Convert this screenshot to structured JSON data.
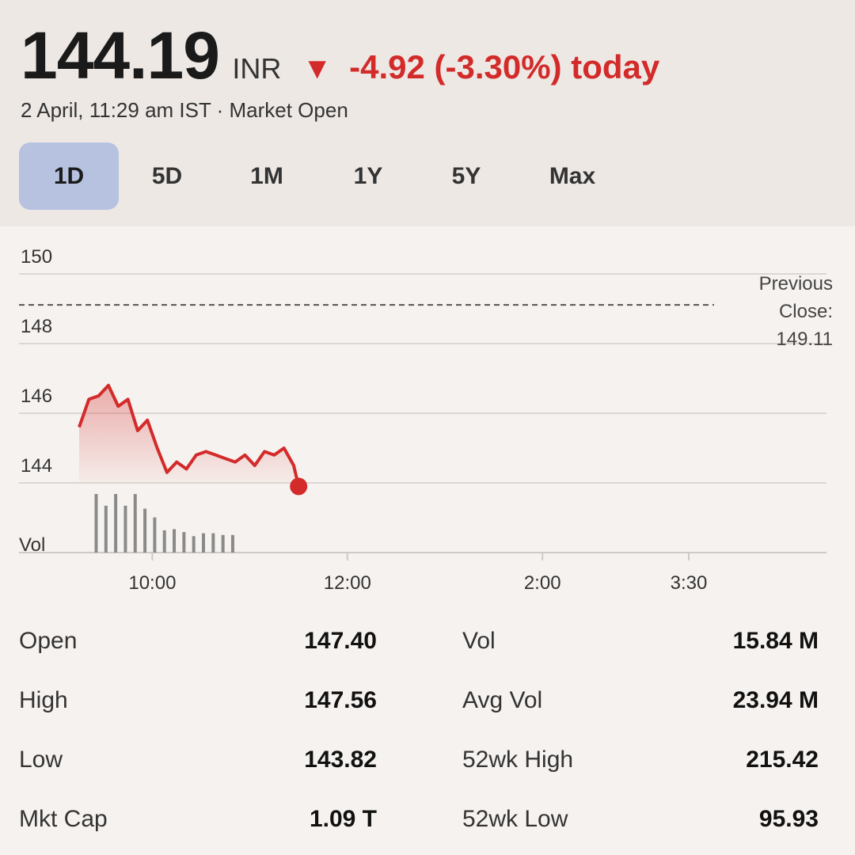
{
  "quote": {
    "price": "144.19",
    "currency": "INR",
    "change_icon": "down-triangle-icon",
    "change_arrow": "▼",
    "change_text": "-4.92 (-3.30%) today",
    "change_color": "#d32a2a",
    "timestamp": "2 April, 11:29 am IST · Market Open"
  },
  "tabs": [
    {
      "label": "1D",
      "active": true
    },
    {
      "label": "5D",
      "active": false
    },
    {
      "label": "1M",
      "active": false
    },
    {
      "label": "1Y",
      "active": false
    },
    {
      "label": "5Y",
      "active": false
    },
    {
      "label": "Max",
      "active": false
    }
  ],
  "chart_data": {
    "type": "line",
    "y_ticks": [
      "150",
      "148",
      "146",
      "144"
    ],
    "ylim": [
      142,
      150
    ],
    "x_ticks": [
      "10:00",
      "12:00",
      "2:00",
      "3:30"
    ],
    "x_tick_times": [
      10.0,
      12.0,
      14.0,
      15.5
    ],
    "x_range": [
      9.25,
      15.5
    ],
    "previous_close": {
      "label_lines": [
        "Previous",
        "Close:",
        "149.11"
      ],
      "value": 149.11
    },
    "volume_label": "Vol",
    "line_color": "#d32a2a",
    "series": [
      {
        "x": [
          9.25,
          9.35,
          9.45,
          9.55,
          9.65,
          9.75,
          9.85,
          9.95,
          10.05,
          10.15,
          10.25,
          10.35,
          10.45,
          10.55,
          10.65,
          10.75,
          10.85,
          10.95,
          11.05,
          11.15,
          11.25,
          11.35,
          11.45
        ],
        "y": [
          145.6,
          146.4,
          146.5,
          146.8,
          146.2,
          146.4,
          145.5,
          145.8,
          145.0,
          144.3,
          144.6,
          144.4,
          144.8,
          144.9,
          144.8,
          144.7,
          144.6,
          144.8,
          144.5,
          144.9,
          144.8,
          145.0,
          144.5
        ]
      }
    ],
    "last_point": {
      "x": 11.5,
      "y": 143.9
    },
    "volume": {
      "x": [
        9.4,
        9.5,
        9.6,
        9.7,
        9.8,
        9.9,
        10.0,
        10.1,
        10.2,
        10.3,
        10.4,
        10.5,
        10.6,
        10.7,
        10.8
      ],
      "v": [
        1.0,
        0.8,
        1.0,
        0.8,
        1.0,
        0.75,
        0.6,
        0.38,
        0.4,
        0.35,
        0.28,
        0.33,
        0.33,
        0.3,
        0.3
      ]
    }
  },
  "stats": {
    "left": [
      {
        "label": "Open",
        "value": "147.40"
      },
      {
        "label": "High",
        "value": "147.56"
      },
      {
        "label": "Low",
        "value": "143.82"
      },
      {
        "label": "Mkt Cap",
        "value": "1.09 T"
      }
    ],
    "right": [
      {
        "label": "Vol",
        "value": "15.84 M"
      },
      {
        "label": "Avg Vol",
        "value": "23.94 M"
      },
      {
        "label": "52wk High",
        "value": "215.42"
      },
      {
        "label": "52wk Low",
        "value": "95.93"
      }
    ]
  }
}
